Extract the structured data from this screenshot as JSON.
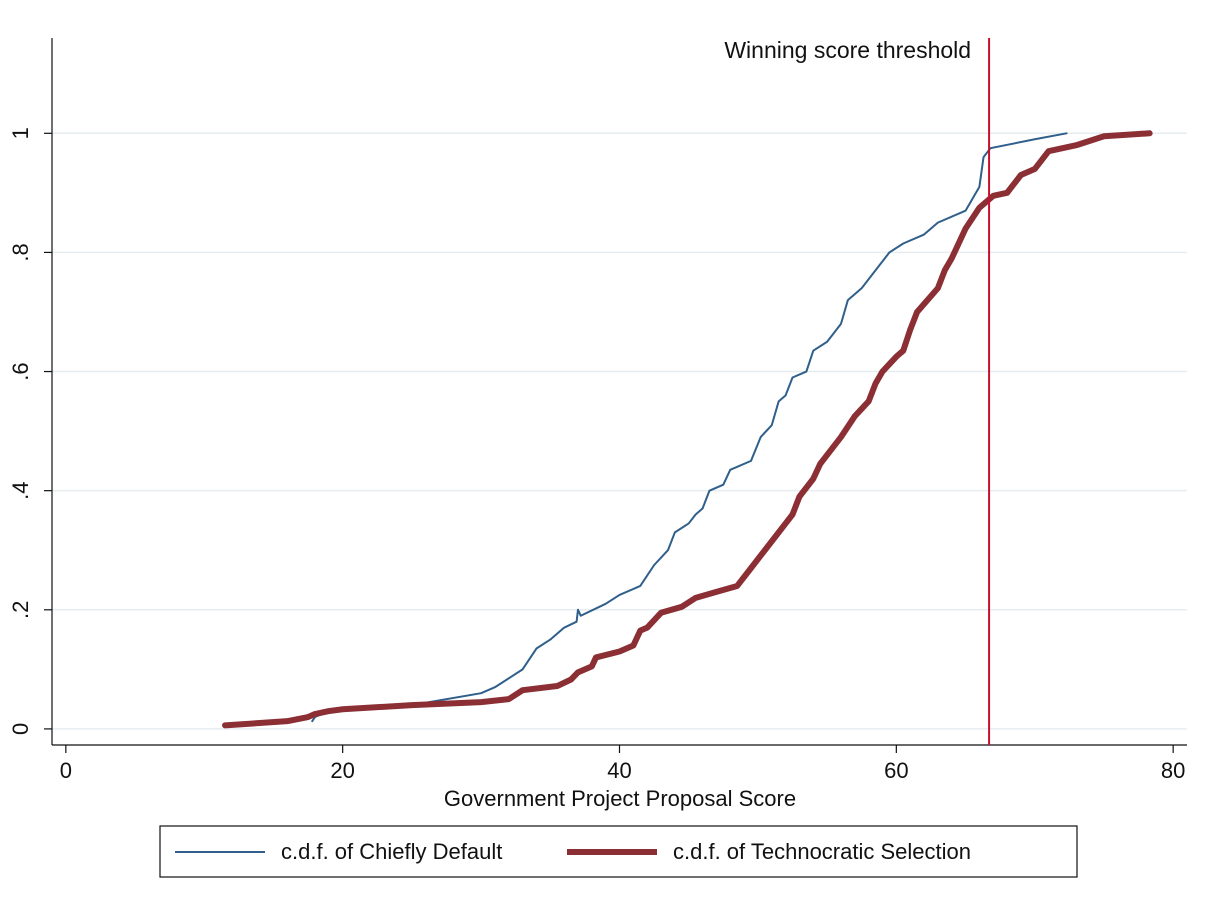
{
  "chart_data": {
    "type": "line",
    "x_label": "Government Project Proposal Score",
    "xlim": [
      -1,
      81
    ],
    "xticks": [
      0,
      20,
      40,
      60,
      80
    ],
    "ylim": [
      -0.027,
      1.16
    ],
    "yticks": [
      0,
      {
        "value": 0.2,
        "label": ".2"
      },
      {
        "value": 0.4,
        "label": ".4"
      },
      {
        "value": 0.6,
        "label": ".6"
      },
      {
        "value": 0.8,
        "label": ".8"
      },
      1
    ],
    "grid": true,
    "threshold": {
      "x": 66.7,
      "label": "Winning score threshold",
      "color": "#c8102e"
    },
    "series": [
      {
        "name": "c.d.f. of Chiefly Default",
        "color": "#2f5f8a",
        "width": 2,
        "x": [
          17.8,
          18,
          18.5,
          20,
          25,
          30,
          31,
          32,
          33,
          34,
          35,
          36,
          36.9,
          37,
          37.2,
          39,
          40,
          41.5,
          42.5,
          43.5,
          44,
          45,
          45.5,
          46,
          46.5,
          47.5,
          48,
          49.5,
          50.2,
          51,
          51.5,
          52,
          52.5,
          53.5,
          54,
          55,
          56,
          56.5,
          57.5,
          58.5,
          59.5,
          60.5,
          62,
          63,
          65,
          66,
          66.3,
          66.8,
          70,
          72.3
        ],
        "values": [
          0.013,
          0.02,
          0.025,
          0.03,
          0.04,
          0.06,
          0.07,
          0.085,
          0.1,
          0.135,
          0.15,
          0.17,
          0.18,
          0.2,
          0.19,
          0.21,
          0.225,
          0.24,
          0.275,
          0.3,
          0.33,
          0.345,
          0.36,
          0.37,
          0.4,
          0.41,
          0.435,
          0.45,
          0.49,
          0.51,
          0.55,
          0.56,
          0.59,
          0.6,
          0.635,
          0.65,
          0.68,
          0.72,
          0.74,
          0.77,
          0.8,
          0.815,
          0.83,
          0.85,
          0.87,
          0.91,
          0.96,
          0.975,
          0.99,
          1.0
        ]
      },
      {
        "name": "c.d.f. of Technocratic Selection",
        "color": "#8b2f35",
        "width": 6,
        "x": [
          11.5,
          16,
          17.5,
          18,
          19,
          20,
          25,
          30,
          32,
          33,
          35.5,
          36.5,
          37,
          38,
          38.3,
          40,
          41,
          41.5,
          42,
          43,
          44.5,
          45.5,
          47,
          48.5,
          49.5,
          50.5,
          51.5,
          52,
          52.5,
          53,
          54,
          54.5,
          55,
          56,
          57,
          58,
          58.5,
          59,
          60,
          60.5,
          61,
          61.5,
          63,
          63.5,
          64,
          65,
          66,
          67,
          68,
          69,
          70,
          71,
          73,
          75,
          78.3
        ],
        "values": [
          0.006,
          0.013,
          0.02,
          0.025,
          0.03,
          0.033,
          0.04,
          0.045,
          0.05,
          0.065,
          0.072,
          0.083,
          0.095,
          0.105,
          0.12,
          0.13,
          0.14,
          0.165,
          0.17,
          0.195,
          0.205,
          0.22,
          0.23,
          0.24,
          0.27,
          0.3,
          0.33,
          0.345,
          0.36,
          0.39,
          0.42,
          0.445,
          0.46,
          0.49,
          0.525,
          0.55,
          0.58,
          0.6,
          0.625,
          0.635,
          0.67,
          0.7,
          0.74,
          0.77,
          0.79,
          0.84,
          0.875,
          0.895,
          0.9,
          0.93,
          0.94,
          0.97,
          0.98,
          0.995,
          1.0
        ]
      }
    ]
  }
}
